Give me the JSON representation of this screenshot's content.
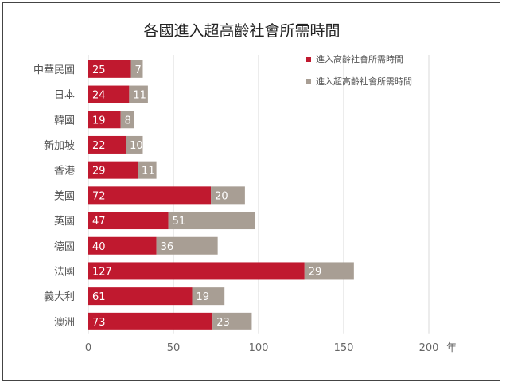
{
  "chart_data": {
    "type": "bar",
    "orientation": "horizontal",
    "stacked": true,
    "title": "各國進入超高齡社會所需時間",
    "categories": [
      "中華民國",
      "日本",
      "韓國",
      "新加坡",
      "香港",
      "美國",
      "英國",
      "德國",
      "法國",
      "義大利",
      "澳洲"
    ],
    "series": [
      {
        "name": "進入高齡社會所需時間",
        "color": "#c0192f",
        "values": [
          25,
          24,
          19,
          22,
          29,
          72,
          47,
          40,
          127,
          61,
          73
        ]
      },
      {
        "name": "進入超高齡社會所需時間",
        "color": "#a89e94",
        "values": [
          7,
          11,
          8,
          10,
          11,
          20,
          51,
          36,
          29,
          19,
          23
        ]
      }
    ],
    "xlim": [
      0,
      200
    ],
    "xticks": [
      0,
      50,
      100,
      150,
      200
    ],
    "xunit": "年",
    "grid": "vertical",
    "legend_position": "top-right"
  }
}
